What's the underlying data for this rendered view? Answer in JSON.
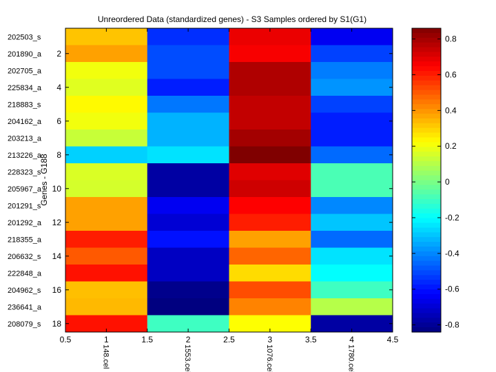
{
  "chart_data": {
    "type": "heatmap",
    "title": "Unreordered Data (standardized genes) - S3 Samples ordered by S1(G1)",
    "ylabel": "Genes - G188",
    "xlim": [
      0.5,
      4.5
    ],
    "ylim": [
      0.5,
      18.5
    ],
    "x_ticks": [
      0.5,
      1,
      1.5,
      2,
      2.5,
      3,
      3.5,
      4,
      4.5
    ],
    "y_ticks": [
      2,
      4,
      6,
      8,
      10,
      12,
      14,
      16,
      18
    ],
    "columns": [
      "148.cel",
      "1553.cel",
      "1076.cel",
      "1780.cel"
    ],
    "rows": [
      "202503_s",
      "201890_a",
      "202705_a",
      "225834_a",
      "218883_s",
      "204162_a",
      "203213_a",
      "213226_a",
      "228323_s",
      "205967_a",
      "201291_s",
      "201292_a",
      "218355_a",
      "206632_s",
      "222848_a",
      "204962_s",
      "236641_a",
      "208079_s"
    ],
    "values": [
      [
        0.32,
        -0.55,
        0.68,
        -0.65
      ],
      [
        0.38,
        -0.5,
        0.66,
        -0.52
      ],
      [
        0.2,
        -0.5,
        0.78,
        -0.42
      ],
      [
        0.17,
        -0.58,
        0.78,
        -0.38
      ],
      [
        0.23,
        -0.43,
        0.75,
        -0.52
      ],
      [
        0.2,
        -0.33,
        0.75,
        -0.58
      ],
      [
        0.13,
        -0.33,
        0.8,
        -0.58
      ],
      [
        -0.28,
        -0.25,
        0.86,
        -0.45
      ],
      [
        0.16,
        -0.78,
        0.7,
        -0.08
      ],
      [
        0.15,
        -0.78,
        0.73,
        -0.08
      ],
      [
        0.38,
        -0.65,
        0.65,
        -0.4
      ],
      [
        0.38,
        -0.7,
        0.6,
        -0.3
      ],
      [
        0.6,
        -0.6,
        0.38,
        -0.45
      ],
      [
        0.5,
        -0.73,
        0.48,
        -0.25
      ],
      [
        0.62,
        -0.73,
        0.28,
        -0.2
      ],
      [
        0.33,
        -0.82,
        0.52,
        -0.1
      ],
      [
        0.34,
        -0.85,
        0.43,
        0.1
      ],
      [
        0.62,
        -0.1,
        0.22,
        -0.78
      ]
    ],
    "colorbar": {
      "colormap": "jet",
      "min": -0.84,
      "max": 0.86,
      "ticks": [
        -0.8,
        -0.6,
        -0.4,
        -0.2,
        0,
        0.2,
        0.4,
        0.6,
        0.8
      ]
    }
  }
}
